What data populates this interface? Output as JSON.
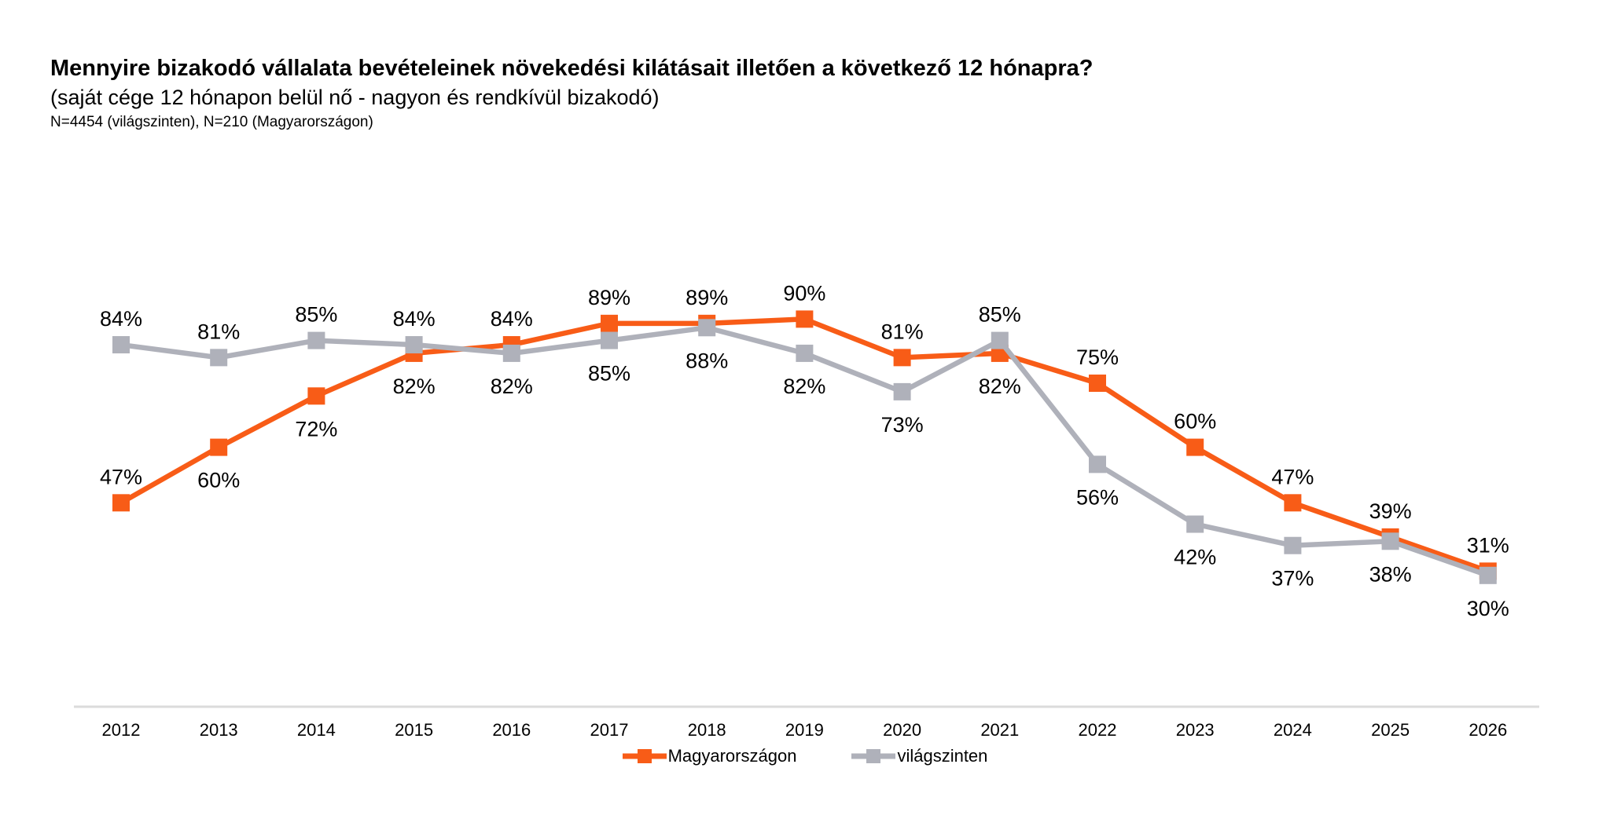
{
  "page": {
    "background": "#FFFFFF",
    "text_color": "#000000"
  },
  "header": {
    "title": "Mennyire bizakodó vállalata bevételeinek növekedési kilátásait illetően a következő 12 hónapra?",
    "subtitle": "(saját cége 12 hónapon belül nő - nagyon és rendkívül bizakodó)",
    "sample_note": "N=4454 (világszinten), N=210 (Magyarországon)"
  },
  "chart_data": {
    "type": "line",
    "title": "Mennyire bizakodó vállalata bevételeinek növekedési kilátásait illetően a következő 12 hónapra?",
    "subtitle": "(saját cége 12 hónapon belül nő - nagyon és rendkívül bizakodó)",
    "sample_note": "N=4454 (világszinten), N=210 (Magyarországon)",
    "categories": [
      "2012",
      "2013",
      "2014",
      "2015",
      "2016",
      "2017",
      "2018",
      "2019",
      "2020",
      "2021",
      "2022",
      "2023",
      "2024",
      "2025",
      "2026"
    ],
    "series": [
      {
        "name": "Magyarországon",
        "color": "#F85C17",
        "marker": "square",
        "values": [
          47,
          60,
          72,
          82,
          84,
          89,
          89,
          90,
          81,
          82,
          75,
          60,
          47,
          39,
          31
        ],
        "label_side": [
          "above",
          "below",
          "below",
          "below",
          "above",
          "above",
          "above",
          "above",
          "above",
          "below",
          "above",
          "above",
          "above",
          "above",
          "above"
        ]
      },
      {
        "name": "világszinten",
        "color": "#AFB1BA",
        "marker": "square",
        "values": [
          84,
          81,
          85,
          84,
          82,
          85,
          88,
          82,
          73,
          85,
          56,
          42,
          37,
          38,
          30
        ],
        "label_side": [
          "above",
          "above",
          "above",
          "above",
          "below",
          "below",
          "below",
          "below",
          "below",
          "above",
          "below",
          "below",
          "below",
          "below",
          "below"
        ]
      }
    ],
    "value_suffix": "%",
    "ylim": [
      0,
      100
    ],
    "grid": false,
    "y_axis_visible": false,
    "x_axis_line_color": "#DBDBDB",
    "label_color": "#000000",
    "legend_position": "bottom"
  }
}
